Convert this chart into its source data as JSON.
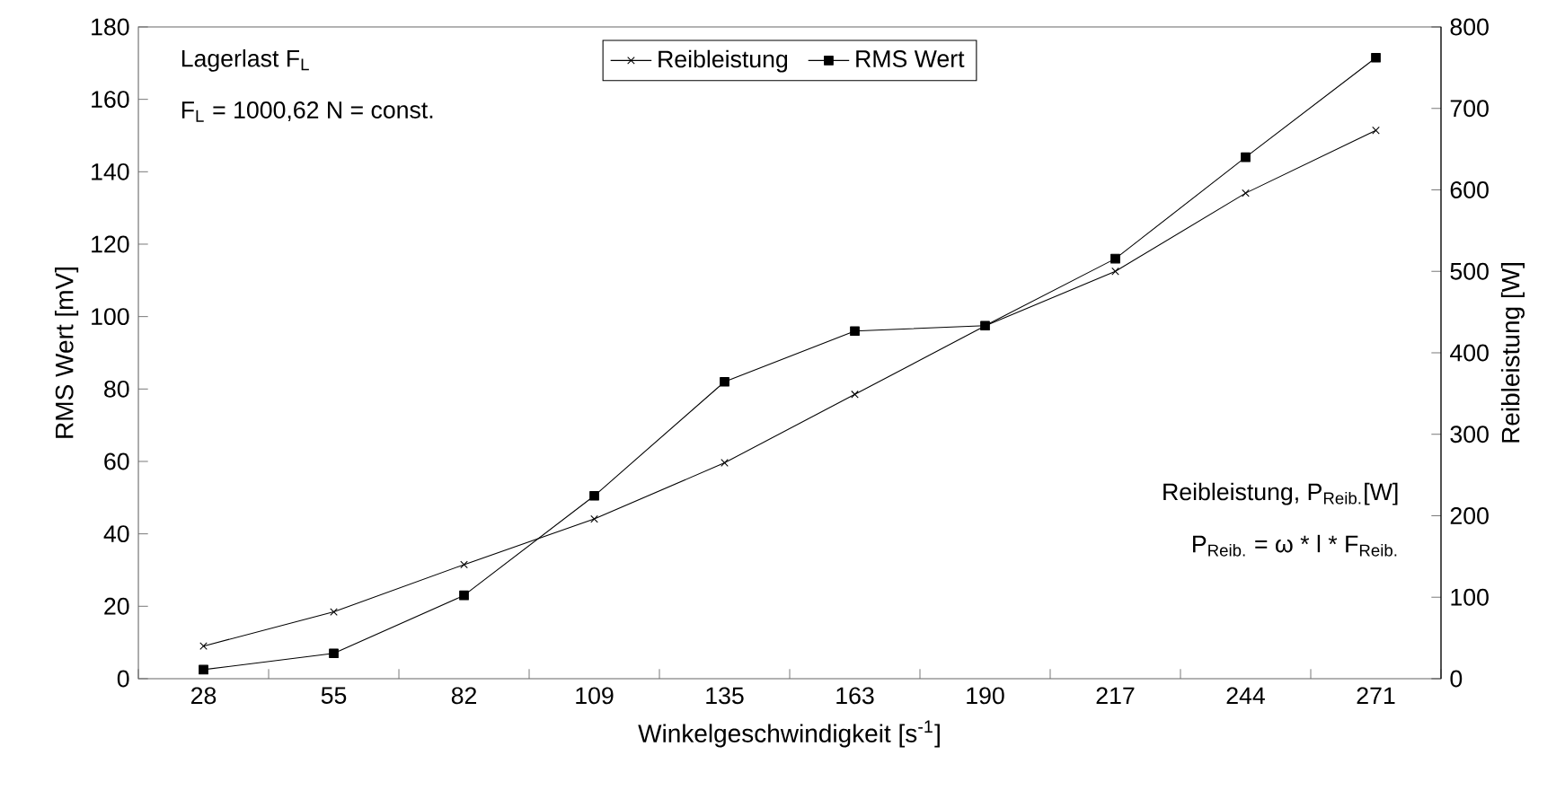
{
  "chart_data": {
    "type": "line",
    "categories": [
      "28",
      "55",
      "82",
      "109",
      "135",
      "163",
      "190",
      "217",
      "244",
      "271"
    ],
    "xlabel": "Winkelgeschwindigkeit  [s$^{-1}$]",
    "ylabel": "RMS Wert [mV]",
    "y2label": "Reibleistung  [W]",
    "ylim": [
      0,
      180
    ],
    "yticks": [
      0,
      20,
      40,
      60,
      80,
      100,
      120,
      140,
      160,
      180
    ],
    "y2lim": [
      0,
      800
    ],
    "y2ticks": [
      0,
      100,
      200,
      300,
      400,
      500,
      600,
      700,
      800
    ],
    "grid": false,
    "legend": "top",
    "line_style": "solid",
    "series": [
      {
        "name": "Reibleistung",
        "color": "#000000",
        "axis": "y2",
        "marker": "cross",
        "values": [
          40,
          82,
          140,
          196,
          265,
          349,
          433,
          500,
          596,
          673
        ]
      },
      {
        "name": "RMS Wert",
        "color": "#000000",
        "marker": "square",
        "values": [
          2.5,
          7,
          23,
          50.5,
          82,
          96,
          97.5,
          116,
          144,
          171.5
        ]
      }
    ],
    "annotations": [
      "Lagerlast F$_{L}$",
      "F$_{L}$ = 1000,62 N = const.",
      "Reibleistung, P$_{Reib.}$[W]",
      "P$_{Reib.}$ = ω * l * F$_{Reib.}$"
    ]
  }
}
